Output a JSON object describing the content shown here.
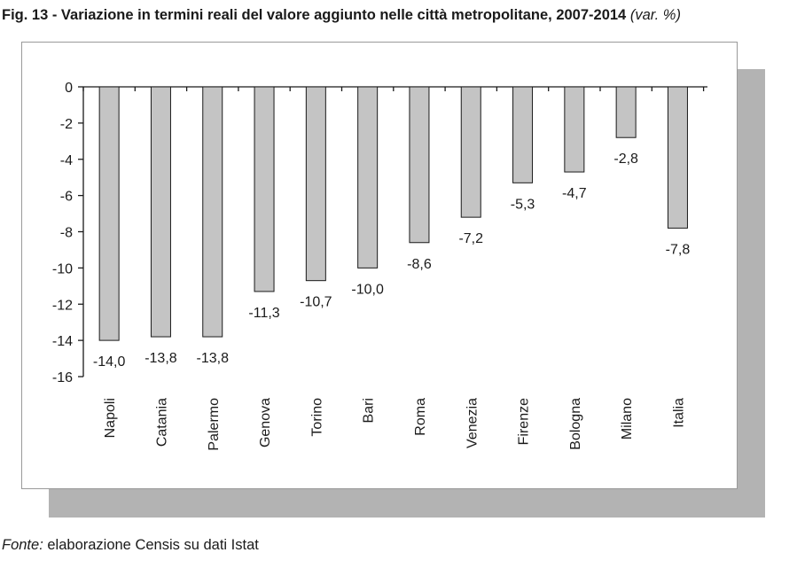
{
  "title": {
    "main": "Fig. 13 - Variazione in termini reali del valore aggiunto nelle città metropolitane, 2007-2014",
    "unit": "(var. %)"
  },
  "source": {
    "label": "Fonte:",
    "text": "elaborazione Censis su dati Istat"
  },
  "colors": {
    "bar_fill": "#c4c4c4",
    "bar_stroke": "#1a1a1a",
    "shadow": "#b3b3b3"
  },
  "chart_data": {
    "type": "bar",
    "title": "Fig. 13 - Variazione in termini reali del valore aggiunto nelle città metropolitane, 2007-2014 (var. %)",
    "xlabel": "",
    "ylabel": "",
    "ylim": [
      -16,
      0
    ],
    "yticks": [
      0,
      -2,
      -4,
      -6,
      -8,
      -10,
      -12,
      -14,
      -16
    ],
    "ytick_labels": [
      "0",
      "-2",
      "-4",
      "-6",
      "-8",
      "-10",
      "-12",
      "-14",
      "-16"
    ],
    "grid": false,
    "legend": "none",
    "categories": [
      "Napoli",
      "Catania",
      "Palermo",
      "Genova",
      "Torino",
      "Bari",
      "Roma",
      "Venezia",
      "Firenze",
      "Bologna",
      "Milano",
      "Italia"
    ],
    "values": [
      -14.0,
      -13.8,
      -13.8,
      -11.3,
      -10.7,
      -10.0,
      -8.6,
      -7.2,
      -5.3,
      -4.7,
      -2.8,
      -7.8
    ],
    "data_labels": [
      "-14,0",
      "-13,8",
      "-13,8",
      "-11,3",
      "-10,7",
      "-10,0",
      "-8,6",
      "-7,2",
      "-5,3",
      "-4,7",
      "-2,8",
      "-7,8"
    ]
  }
}
